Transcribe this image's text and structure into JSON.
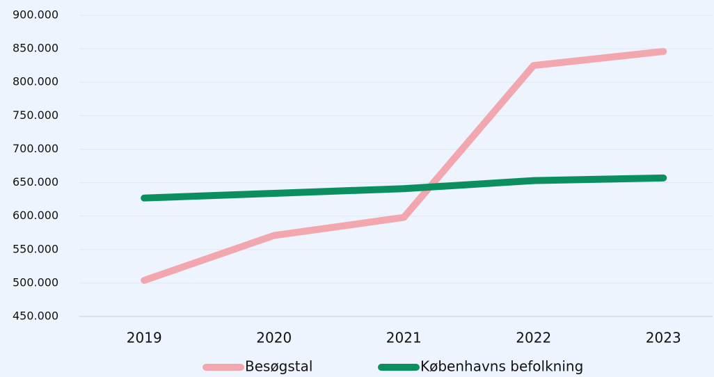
{
  "chart_data": {
    "type": "line",
    "categories": [
      "2019",
      "2020",
      "2021",
      "2022",
      "2023"
    ],
    "series": [
      {
        "name": "Besøgstal",
        "color": "#f2a7ae",
        "values": [
          504000,
          571000,
          598000,
          825000,
          846000
        ]
      },
      {
        "name": "Københavns befolkning",
        "color": "#0b8f5e",
        "values": [
          627000,
          634000,
          641000,
          653000,
          657000
        ]
      }
    ],
    "ylim": [
      450000,
      900000
    ],
    "yticks": [
      {
        "value": 450000,
        "label": "450.000"
      },
      {
        "value": 500000,
        "label": "500.000"
      },
      {
        "value": 550000,
        "label": "550.000"
      },
      {
        "value": 600000,
        "label": "600.000"
      },
      {
        "value": 650000,
        "label": "650.000"
      },
      {
        "value": 700000,
        "label": "700.000"
      },
      {
        "value": 750000,
        "label": "750.000"
      },
      {
        "value": 800000,
        "label": "800.000"
      },
      {
        "value": 850000,
        "label": "850.000"
      },
      {
        "value": 900000,
        "label": "900.000"
      }
    ],
    "grid": true,
    "legend": "bottom"
  }
}
